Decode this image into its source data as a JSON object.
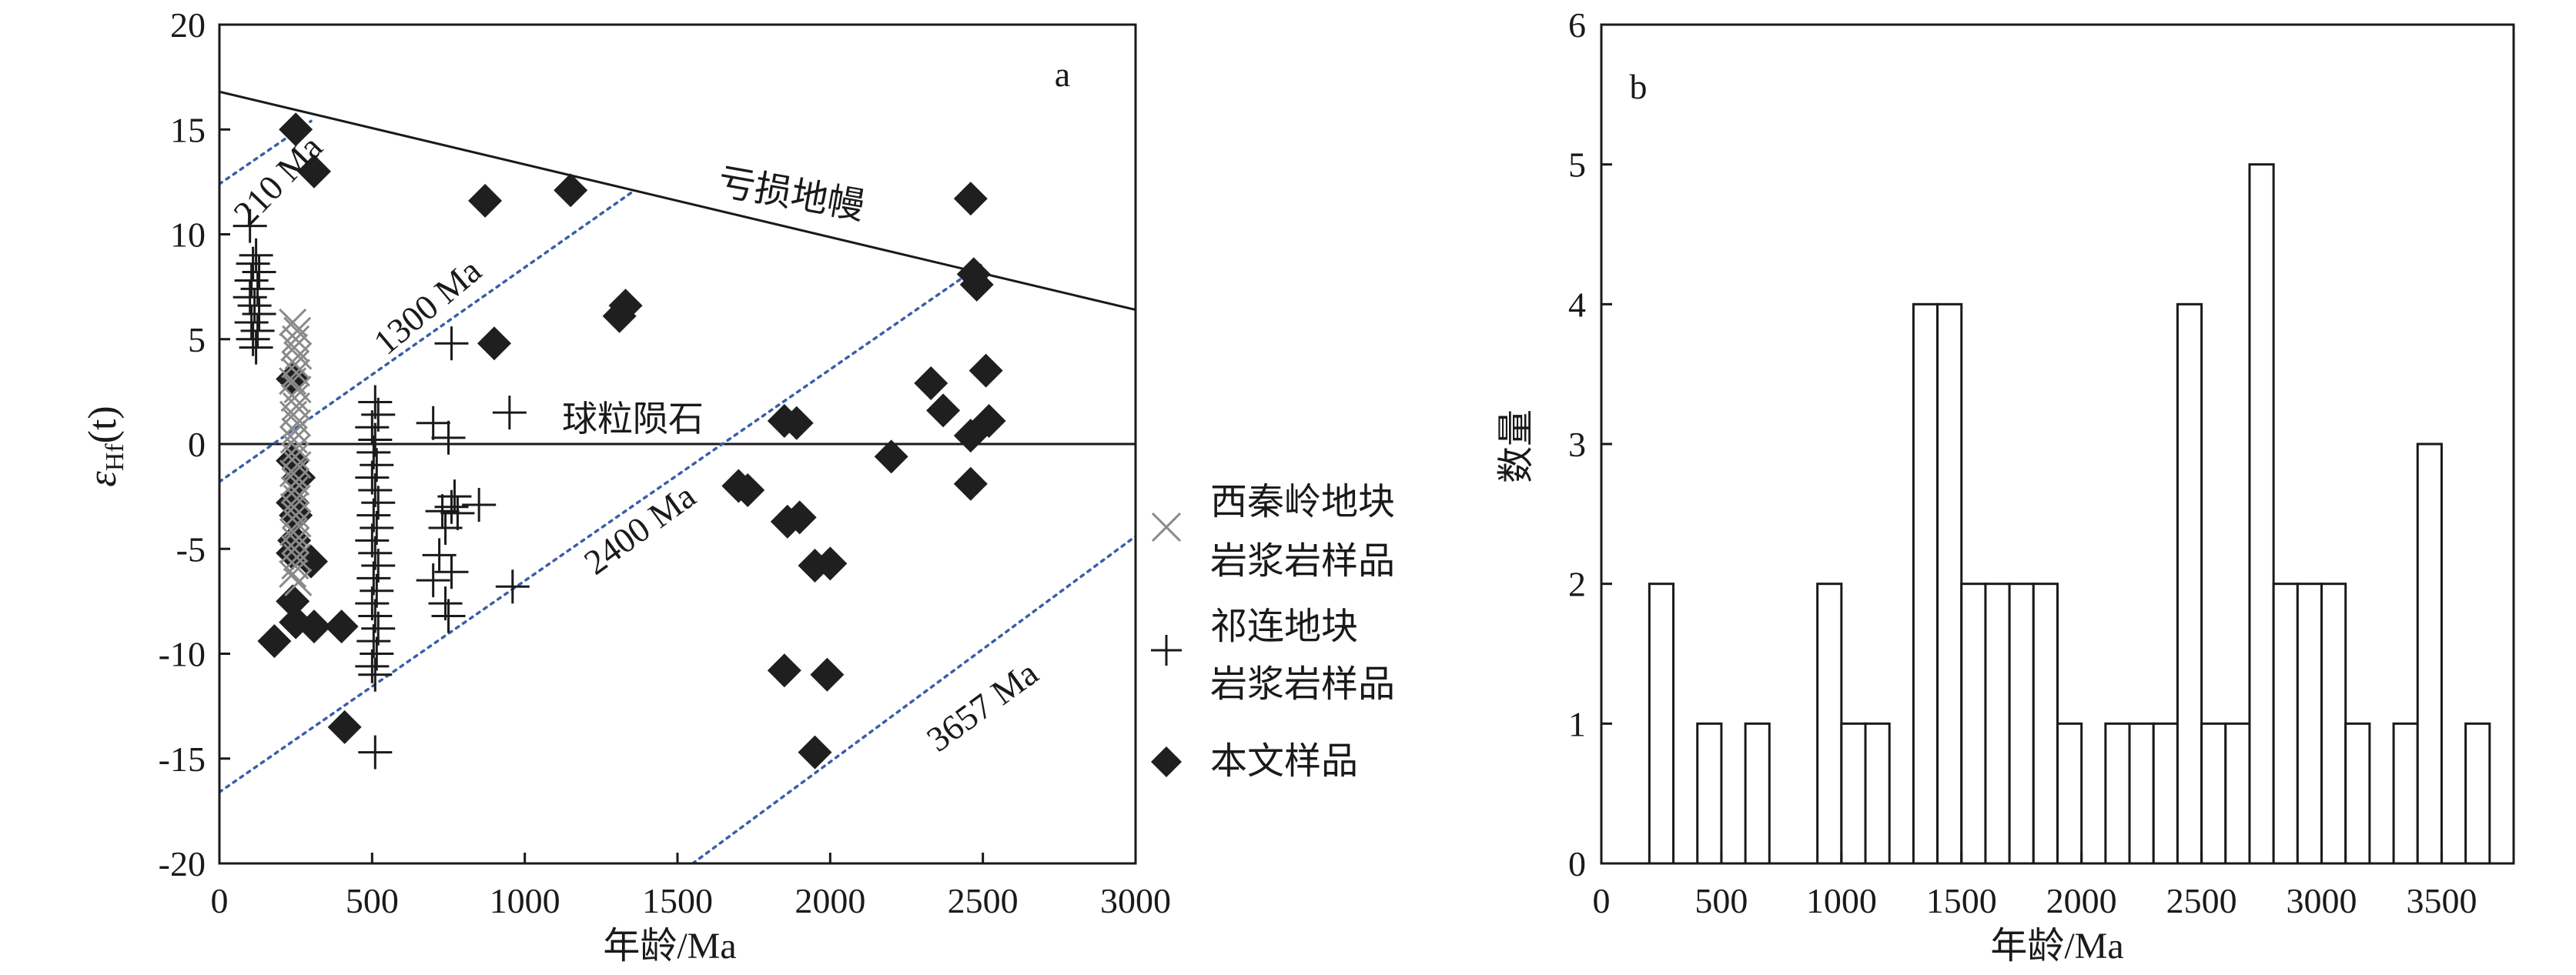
{
  "chart_data": [
    {
      "panel_label": "a",
      "type": "scatter",
      "xlabel": "年龄/Ma",
      "ylabel_main": "ε",
      "ylabel_sub": "Hf",
      "ylabel_tail": "(t)",
      "xlim": [
        0,
        3000
      ],
      "ylim": [
        -20,
        20
      ],
      "x_ticks": [
        0,
        500,
        1000,
        1500,
        2000,
        2500,
        3000
      ],
      "y_ticks": [
        20,
        15,
        10,
        5,
        0,
        -5,
        -10,
        -15,
        -20
      ],
      "lines": {
        "depleted_mantle": {
          "label": "亏损地幔",
          "points": [
            [
              0,
              16.8
            ],
            [
              3000,
              6.4
            ]
          ]
        },
        "chur": {
          "label": "球粒陨石",
          "points": [
            [
              0,
              0
            ],
            [
              3000,
              0
            ]
          ]
        },
        "model_ages": [
          {
            "label": "210 Ma",
            "points": [
              [
                0,
                12.4
              ],
              [
                300,
                15.4
              ]
            ]
          },
          {
            "label": "1300 Ma",
            "points": [
              [
                0,
                -1.8
              ],
              [
                1350,
                12.0
              ]
            ]
          },
          {
            "label": "2400 Ma",
            "points": [
              [
                0,
                -16.6
              ],
              [
                2500,
                8.6
              ]
            ]
          },
          {
            "label": "3657 Ma",
            "points": [
              [
                1550,
                -20
              ],
              [
                3000,
                -4.4
              ]
            ]
          }
        ]
      },
      "legend": [
        {
          "marker": "x",
          "label_line1": "西秦岭地块",
          "label_line2": "岩浆岩样品",
          "color": "#8a8a8a"
        },
        {
          "marker": "plus",
          "label_line1": "祁连地块",
          "label_line2": "岩浆岩样品",
          "color": "#1a1a1a"
        },
        {
          "marker": "diamond",
          "label_line1": "本文样品",
          "label_line2": "",
          "color": "#1a1a1a"
        }
      ],
      "series": [
        {
          "name": "本文样品",
          "marker": "diamond",
          "points": [
            [
              250,
              15.0
            ],
            [
              310,
              13.0
            ],
            [
              870,
              11.6
            ],
            [
              1150,
              12.1
            ],
            [
              1330,
              6.6
            ],
            [
              1310,
              6.1
            ],
            [
              900,
              4.8
            ],
            [
              240,
              3.1
            ],
            [
              240,
              -0.8
            ],
            [
              260,
              -1.6
            ],
            [
              240,
              -2.8
            ],
            [
              250,
              -3.4
            ],
            [
              245,
              -4.6
            ],
            [
              240,
              -5.2
            ],
            [
              300,
              -5.6
            ],
            [
              240,
              -7.5
            ],
            [
              250,
              -8.5
            ],
            [
              310,
              -8.7
            ],
            [
              400,
              -8.7
            ],
            [
              180,
              -9.4
            ],
            [
              410,
              -13.5
            ],
            [
              1850,
              1.1
            ],
            [
              1890,
              1.0
            ],
            [
              2200,
              -0.6
            ],
            [
              1700,
              -2.0
            ],
            [
              1730,
              -2.2
            ],
            [
              1860,
              -3.7
            ],
            [
              1900,
              -3.5
            ],
            [
              1950,
              -5.8
            ],
            [
              2000,
              -5.7
            ],
            [
              1850,
              -10.8
            ],
            [
              1990,
              -11.0
            ],
            [
              1950,
              -14.7
            ],
            [
              2460,
              11.7
            ],
            [
              2470,
              8.1
            ],
            [
              2480,
              7.6
            ],
            [
              2330,
              2.9
            ],
            [
              2370,
              1.6
            ],
            [
              2510,
              3.5
            ],
            [
              2520,
              1.1
            ],
            [
              2460,
              0.4
            ],
            [
              2460,
              -1.9
            ]
          ]
        },
        {
          "name": "西秦岭地块岩浆岩样品",
          "marker": "x",
          "points": [
            [
              240,
              5.8
            ],
            [
              255,
              5.4
            ],
            [
              250,
              5.0
            ],
            [
              245,
              4.6
            ],
            [
              258,
              4.2
            ],
            [
              248,
              3.8
            ],
            [
              252,
              3.4
            ],
            [
              240,
              3.0
            ],
            [
              256,
              2.6
            ],
            [
              246,
              2.2
            ],
            [
              252,
              1.8
            ],
            [
              242,
              1.4
            ],
            [
              255,
              1.0
            ],
            [
              248,
              0.6
            ],
            [
              244,
              0.2
            ],
            [
              252,
              -0.2
            ],
            [
              248,
              -0.6
            ],
            [
              256,
              -1.0
            ],
            [
              242,
              -1.4
            ],
            [
              250,
              -1.8
            ],
            [
              246,
              -2.2
            ],
            [
              254,
              -2.6
            ],
            [
              244,
              -3.0
            ],
            [
              250,
              -3.4
            ],
            [
              256,
              -3.8
            ],
            [
              242,
              -4.2
            ],
            [
              250,
              -4.6
            ],
            [
              246,
              -5.0
            ],
            [
              254,
              -5.4
            ],
            [
              248,
              -5.8
            ],
            [
              240,
              -6.2
            ],
            [
              258,
              -6.6
            ]
          ]
        },
        {
          "name": "祁连地块岩浆岩样品",
          "marker": "plus",
          "points": [
            [
              100,
              10.4
            ],
            [
              120,
              9.0
            ],
            [
              110,
              8.6
            ],
            [
              130,
              8.2
            ],
            [
              105,
              7.8
            ],
            [
              125,
              7.4
            ],
            [
              100,
              7.0
            ],
            [
              115,
              6.6
            ],
            [
              130,
              6.2
            ],
            [
              105,
              5.8
            ],
            [
              125,
              5.4
            ],
            [
              110,
              5.0
            ],
            [
              120,
              4.6
            ],
            [
              510,
              2.0
            ],
            [
              520,
              1.4
            ],
            [
              500,
              0.8
            ],
            [
              510,
              0.2
            ],
            [
              505,
              -0.4
            ],
            [
              515,
              -1.0
            ],
            [
              500,
              -1.6
            ],
            [
              510,
              -2.2
            ],
            [
              520,
              -2.8
            ],
            [
              505,
              -3.4
            ],
            [
              515,
              -4.0
            ],
            [
              500,
              -4.6
            ],
            [
              510,
              -5.2
            ],
            [
              520,
              -5.8
            ],
            [
              505,
              -6.4
            ],
            [
              515,
              -7.0
            ],
            [
              500,
              -7.6
            ],
            [
              510,
              -8.2
            ],
            [
              520,
              -8.8
            ],
            [
              505,
              -9.4
            ],
            [
              515,
              -10.0
            ],
            [
              500,
              -10.6
            ],
            [
              510,
              -11.0
            ],
            [
              510,
              -14.7
            ],
            [
              760,
              4.8
            ],
            [
              700,
              1.0
            ],
            [
              750,
              0.3
            ],
            [
              770,
              -2.5
            ],
            [
              730,
              -3.2
            ],
            [
              760,
              -3.0
            ],
            [
              850,
              -2.9
            ],
            [
              780,
              -3.3
            ],
            [
              740,
              -4.0
            ],
            [
              720,
              -5.3
            ],
            [
              760,
              -6.1
            ],
            [
              700,
              -6.5
            ],
            [
              740,
              -7.6
            ],
            [
              750,
              -8.2
            ],
            [
              950,
              1.5
            ],
            [
              960,
              -6.8
            ]
          ]
        }
      ]
    },
    {
      "panel_label": "b",
      "type": "bar",
      "xlabel": "年龄/Ma",
      "ylabel": "数量",
      "xlim": [
        0,
        3800
      ],
      "ylim": [
        0,
        6
      ],
      "x_ticks": [
        0,
        500,
        1000,
        1500,
        2000,
        2500,
        3000,
        3500
      ],
      "y_ticks": [
        0,
        1,
        2,
        3,
        4,
        5,
        6
      ],
      "bin_width": 100,
      "bins": [
        {
          "start": 200,
          "count": 2
        },
        {
          "start": 400,
          "count": 1
        },
        {
          "start": 600,
          "count": 1
        },
        {
          "start": 900,
          "count": 2
        },
        {
          "start": 1000,
          "count": 1
        },
        {
          "start": 1100,
          "count": 1
        },
        {
          "start": 1300,
          "count": 4
        },
        {
          "start": 1400,
          "count": 4
        },
        {
          "start": 1500,
          "count": 2
        },
        {
          "start": 1600,
          "count": 2
        },
        {
          "start": 1700,
          "count": 2
        },
        {
          "start": 1800,
          "count": 2
        },
        {
          "start": 1900,
          "count": 1
        },
        {
          "start": 2100,
          "count": 1
        },
        {
          "start": 2200,
          "count": 1
        },
        {
          "start": 2300,
          "count": 1
        },
        {
          "start": 2400,
          "count": 4
        },
        {
          "start": 2500,
          "count": 1
        },
        {
          "start": 2600,
          "count": 1
        },
        {
          "start": 2700,
          "count": 5
        },
        {
          "start": 2800,
          "count": 2
        },
        {
          "start": 2900,
          "count": 2
        },
        {
          "start": 3000,
          "count": 2
        },
        {
          "start": 3100,
          "count": 1
        },
        {
          "start": 3300,
          "count": 1
        },
        {
          "start": 3400,
          "count": 3
        },
        {
          "start": 3600,
          "count": 1
        }
      ]
    }
  ]
}
